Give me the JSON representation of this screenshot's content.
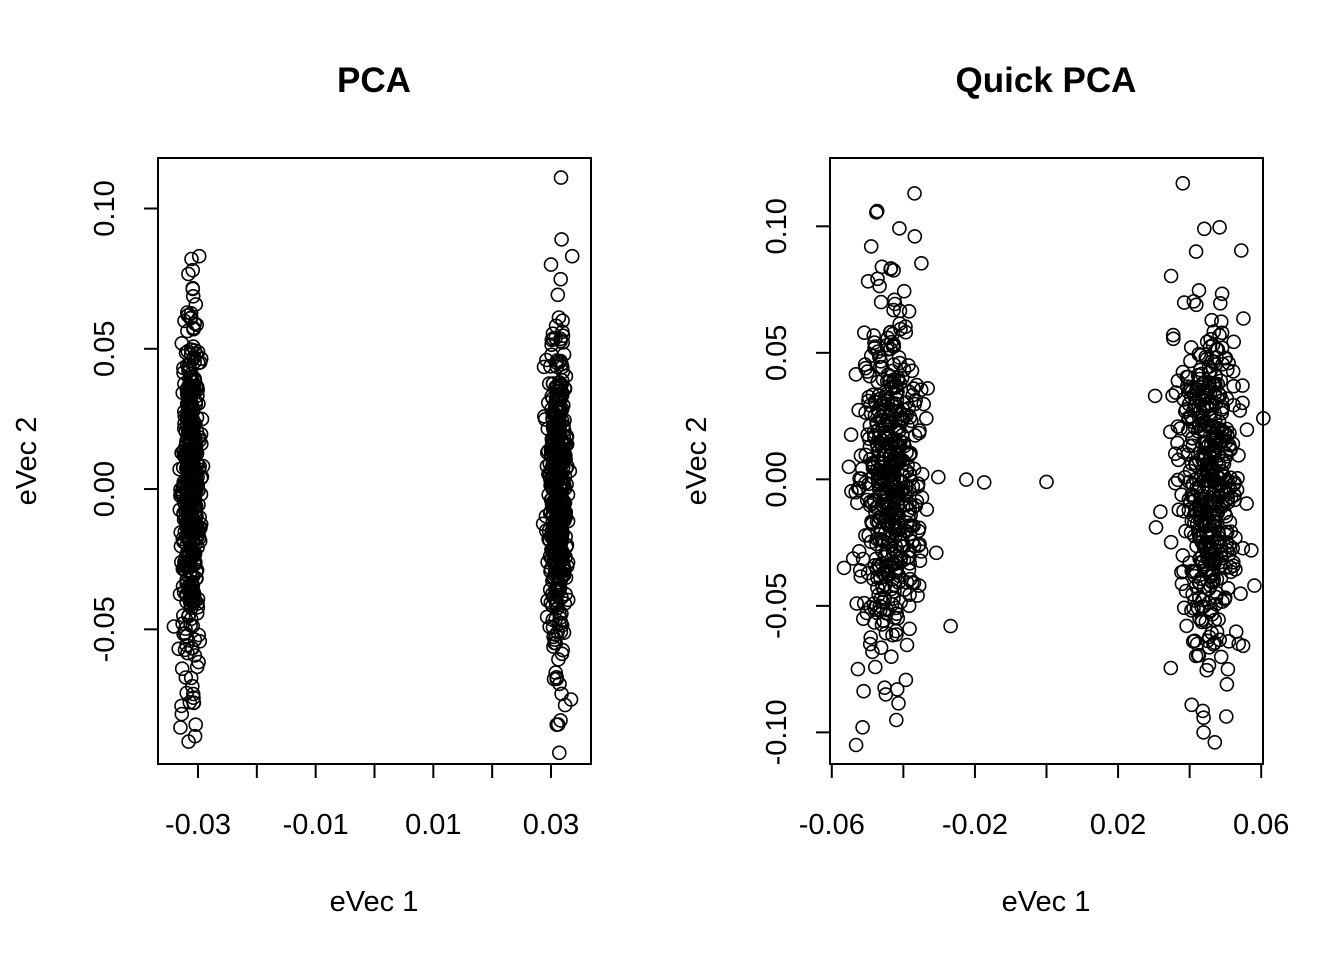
{
  "chart_data": [
    {
      "type": "scatter",
      "title": "PCA",
      "xlabel": "eVec 1",
      "ylabel": "eVec 2",
      "xlim": [
        -0.0368,
        0.0368
      ],
      "ylim": [
        -0.098,
        0.118
      ],
      "x_ticks": [
        -0.03,
        -0.02,
        -0.01,
        0.0,
        0.01,
        0.02,
        0.03
      ],
      "x_tick_labels": [
        "-0.03",
        "",
        "-0.01",
        "",
        "0.01",
        "",
        "0.03"
      ],
      "y_ticks": [
        -0.05,
        0.0,
        0.05,
        0.1
      ],
      "y_tick_labels": [
        "-0.05",
        "0.00",
        "0.05",
        "0.10"
      ],
      "clusters": [
        {
          "x_center": -0.0312,
          "x_sd": 0.0008,
          "y_center": 0.0,
          "y_sd": 0.028,
          "n": 500
        },
        {
          "x_center": 0.0312,
          "x_sd": 0.0008,
          "y_center": 0.0,
          "y_sd": 0.028,
          "n": 500
        }
      ],
      "extra_points": [
        [
          0.0317,
          0.111
        ],
        [
          0.0318,
          0.089
        ],
        [
          0.0336,
          0.083
        ],
        [
          -0.0298,
          0.083
        ],
        [
          -0.0311,
          0.082
        ],
        [
          0.03,
          0.08
        ],
        [
          -0.0309,
          0.078
        ],
        [
          -0.0341,
          -0.049
        ],
        [
          -0.033,
          -0.085
        ],
        [
          -0.0304,
          -0.084
        ],
        [
          -0.0316,
          -0.09
        ],
        [
          -0.0314,
          -0.076
        ],
        [
          0.0324,
          -0.077
        ],
        [
          0.0334,
          -0.075
        ],
        [
          0.0318,
          -0.073
        ]
      ]
    },
    {
      "type": "scatter",
      "title": "Quick PCA",
      "xlabel": "eVec 1",
      "ylabel": "eVec 2",
      "xlim": [
        -0.0605,
        0.0605
      ],
      "ylim": [
        -0.1125,
        0.127
      ],
      "x_ticks": [
        -0.06,
        -0.04,
        -0.02,
        0.0,
        0.02,
        0.04,
        0.06
      ],
      "x_tick_labels": [
        "-0.06",
        "",
        "-0.02",
        "",
        "0.02",
        "",
        "0.06"
      ],
      "y_ticks": [
        -0.1,
        -0.05,
        0.0,
        0.05,
        0.1
      ],
      "y_tick_labels": [
        "-0.10",
        "-0.05",
        "0.00",
        "0.05",
        "0.10"
      ],
      "clusters": [
        {
          "x_center": -0.0435,
          "x_sd": 0.0042,
          "y_center": 0.0,
          "y_sd": 0.034,
          "n": 500
        },
        {
          "x_center": 0.0455,
          "x_sd": 0.0042,
          "y_center": 0.0,
          "y_sd": 0.034,
          "n": 500
        }
      ],
      "extra_points": [
        [
          -0.0224,
          -0.0001
        ],
        [
          -0.0174,
          -0.0012
        ],
        [
          0.0,
          -0.001
        ],
        [
          -0.0268,
          -0.058
        ],
        [
          -0.0566,
          -0.035
        ],
        [
          -0.0532,
          -0.105
        ],
        [
          -0.0473,
          0.106
        ],
        [
          -0.0369,
          0.113
        ],
        [
          -0.0368,
          0.096
        ],
        [
          0.0381,
          0.117
        ],
        [
          0.0418,
          0.09
        ],
        [
          0.0441,
          0.099
        ],
        [
          0.0439,
          -0.1
        ],
        [
          -0.0514,
          -0.098
        ],
        [
          0.0504,
          -0.081
        ],
        [
          0.0581,
          -0.042
        ],
        [
          -0.0527,
          -0.075
        ],
        [
          -0.0449,
          -0.085
        ],
        [
          -0.046,
          0.084
        ],
        [
          -0.0332,
          0.036
        ],
        [
          0.0306,
          -0.019
        ],
        [
          0.0354,
          0.057
        ]
      ]
    }
  ]
}
